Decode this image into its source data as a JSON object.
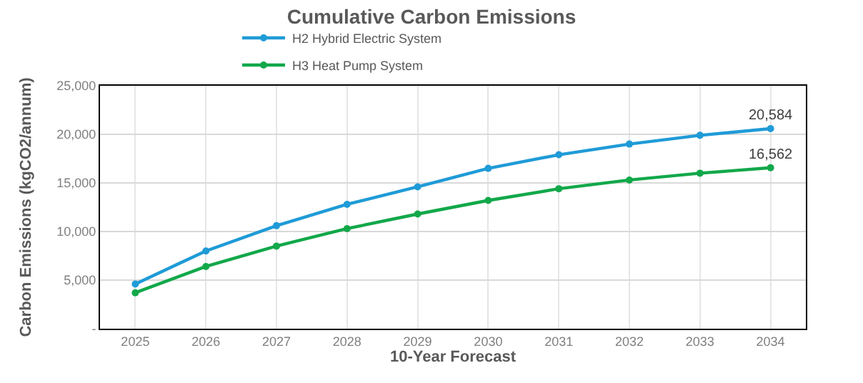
{
  "chart_data": {
    "type": "line",
    "title": "Cumulative Carbon Emissions",
    "xlabel": "10-Year Forecast",
    "ylabel": "Carbon Emissions (kgCO2/annum)",
    "categories": [
      "2025",
      "2026",
      "2027",
      "2028",
      "2029",
      "2030",
      "2031",
      "2032",
      "2033",
      "2034"
    ],
    "series": [
      {
        "name": "H2 Hybrid Electric System",
        "color": "#1f9bd7",
        "values": [
          4600,
          8000,
          10600,
          12800,
          14600,
          16500,
          17900,
          19000,
          19900,
          20584
        ],
        "value_labels": [
          null,
          null,
          null,
          null,
          null,
          null,
          null,
          null,
          null,
          "20,584"
        ]
      },
      {
        "name": "H3 Heat Pump System",
        "color": "#12a84a",
        "values": [
          3700,
          6400,
          8500,
          10300,
          11800,
          13200,
          14400,
          15300,
          16000,
          16562
        ],
        "value_labels": [
          null,
          null,
          null,
          null,
          null,
          null,
          null,
          null,
          null,
          "16,562"
        ]
      }
    ],
    "ylim": [
      0,
      25000
    ],
    "yticks": [
      {
        "value": 0,
        "label": "-"
      },
      {
        "value": 5000,
        "label": "5,000"
      },
      {
        "value": 10000,
        "label": "10,000"
      },
      {
        "value": 15000,
        "label": "15,000"
      },
      {
        "value": 20000,
        "label": "20,000"
      },
      {
        "value": 25000,
        "label": "25,000"
      }
    ],
    "grid": true,
    "legend": "top",
    "marker": "circle",
    "line_style": "solid"
  }
}
